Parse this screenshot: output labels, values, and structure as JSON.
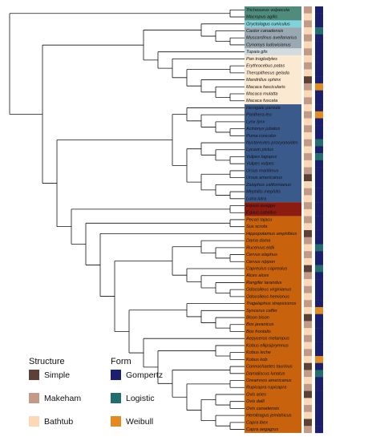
{
  "legend": {
    "structure": {
      "title": "Structure",
      "items": [
        {
          "label": "Simple",
          "color": "#5c4236"
        },
        {
          "label": "Makeham",
          "color": "#c29a86"
        },
        {
          "label": "Bathtub",
          "color": "#fcd9b6"
        }
      ]
    },
    "form": {
      "title": "Form",
      "items": [
        {
          "label": "Gompertz",
          "color": "#1b1f70"
        },
        {
          "label": "Logistic",
          "color": "#226d6e"
        },
        {
          "label": "Weibull",
          "color": "#e28b20"
        }
      ]
    }
  },
  "groups": [
    {
      "color": "#4f8c7c",
      "species": [
        {
          "name": "Trichosurus vulpecula",
          "structure": "Makeham",
          "form": "Gompertz"
        },
        {
          "name": "Macropus agilis",
          "structure": "Bathtub",
          "form": "Gompertz"
        }
      ]
    },
    {
      "color": "#7fd3da",
      "species": [
        {
          "name": "Oryctolagus cuniculus",
          "structure": "Makeham",
          "form": "Gompertz"
        }
      ]
    },
    {
      "color": "#9aa8b2",
      "species": [
        {
          "name": "Castor canadensis",
          "structure": "Bathtub",
          "form": "Logistic"
        },
        {
          "name": "Muscardinus avellanarius",
          "structure": "Makeham",
          "form": "Gompertz"
        },
        {
          "name": "Cynomys ludovicianus",
          "structure": "Bathtub",
          "form": "Gompertz"
        }
      ]
    },
    {
      "color": "#d3dbdf",
      "species": [
        {
          "name": "Tupaia glis",
          "structure": "Makeham",
          "form": "Gompertz"
        }
      ]
    },
    {
      "color": "#fbe9d1",
      "species": [
        {
          "name": "Pan troglodytes",
          "structure": "Bathtub",
          "form": "Gompertz"
        },
        {
          "name": "Erythrocebus patas",
          "structure": "Makeham",
          "form": "Gompertz"
        },
        {
          "name": "Theropithecus gelada",
          "structure": "Bathtub",
          "form": "Gompertz"
        },
        {
          "name": "Mandrillus sphinx",
          "structure": "Simple",
          "form": "Gompertz"
        },
        {
          "name": "Macaca fascicularis",
          "structure": "Makeham",
          "form": "Weibull"
        },
        {
          "name": "Macaca mulatta",
          "structure": "Bathtub",
          "form": "Gompertz"
        },
        {
          "name": "Macaca fuscata",
          "structure": "Makeham",
          "form": "Gompertz"
        }
      ]
    },
    {
      "color": "#3b5a8c",
      "species": [
        {
          "name": "Herogale parvula",
          "structure": "Bathtub",
          "form": "Gompertz"
        },
        {
          "name": "Panthera leo",
          "structure": "Makeham",
          "form": "Weibull"
        },
        {
          "name": "Lynx lynx",
          "structure": "Bathtub",
          "form": "Gompertz"
        },
        {
          "name": "Acinonyx jubatus",
          "structure": "Makeham",
          "form": "Gompertz"
        },
        {
          "name": "Puma concolor",
          "structure": "Bathtub",
          "form": "Gompertz"
        },
        {
          "name": "Nyctereutes procyonoides",
          "structure": "Makeham",
          "form": "Logistic"
        },
        {
          "name": "Lycaon pictus",
          "structure": "Bathtub",
          "form": "Gompertz"
        },
        {
          "name": "Vulpes lagopus",
          "structure": "Makeham",
          "form": "Logistic"
        },
        {
          "name": "Vulpes vulpes",
          "structure": "Bathtub",
          "form": "Gompertz"
        },
        {
          "name": "Ursus maritimus",
          "structure": "Makeham",
          "form": "Gompertz"
        },
        {
          "name": "Ursus americanus",
          "structure": "Simple",
          "form": "Gompertz"
        },
        {
          "name": "Zalophus californianus",
          "structure": "Bathtub",
          "form": "Gompertz"
        },
        {
          "name": "Mephitis mephitis",
          "structure": "Makeham",
          "form": "Gompertz"
        },
        {
          "name": "Lutra lutra",
          "structure": "Bathtub",
          "form": "Gompertz"
        }
      ]
    },
    {
      "color": "#8c1c12",
      "species": [
        {
          "name": "Equus quagga",
          "structure": "Makeham",
          "form": "Gompertz"
        },
        {
          "name": "Equus caballus",
          "structure": "Bathtub",
          "form": "Gompertz"
        }
      ]
    },
    {
      "color": "#c8620c",
      "species": [
        {
          "name": "Pecari tajacu",
          "structure": "Makeham",
          "form": "Gompertz"
        },
        {
          "name": "Sus scrofa",
          "structure": "Bathtub",
          "form": "Gompertz"
        },
        {
          "name": "Hippopotamus amphibius",
          "structure": "Simple",
          "form": "Gompertz"
        },
        {
          "name": "Dama dama",
          "structure": "Makeham",
          "form": "Gompertz"
        },
        {
          "name": "Rucervus eldii",
          "structure": "Bathtub",
          "form": "Logistic"
        },
        {
          "name": "Cervus elaphus",
          "structure": "Makeham",
          "form": "Gompertz"
        },
        {
          "name": "Cervus nippon",
          "structure": "Bathtub",
          "form": "Gompertz"
        },
        {
          "name": "Capreolus capreolus",
          "structure": "Simple",
          "form": "Logistic"
        },
        {
          "name": "Alces alces",
          "structure": "Makeham",
          "form": "Gompertz"
        },
        {
          "name": "Rangifer tarandus",
          "structure": "Bathtub",
          "form": "Gompertz"
        },
        {
          "name": "Odocoileus virginianus",
          "structure": "Makeham",
          "form": "Gompertz"
        },
        {
          "name": "Odocoileus hemionus",
          "structure": "Bathtub",
          "form": "Gompertz"
        },
        {
          "name": "Tragelaphus strepsiceros",
          "structure": "Makeham",
          "form": "Gompertz"
        },
        {
          "name": "Syncerus caffer",
          "structure": "Bathtub",
          "form": "Weibull"
        },
        {
          "name": "Bison bison",
          "structure": "Simple",
          "form": "Gompertz"
        },
        {
          "name": "Bos javanicus",
          "structure": "Makeham",
          "form": "Gompertz"
        },
        {
          "name": "Bos frontalis",
          "structure": "Bathtub",
          "form": "Gompertz"
        },
        {
          "name": "Aepyceros melampus",
          "structure": "Makeham",
          "form": "Gompertz"
        },
        {
          "name": "Kobus ellipsiprymnus",
          "structure": "Bathtub",
          "form": "Gompertz"
        },
        {
          "name": "Kobus leche",
          "structure": "Makeham",
          "form": "Gompertz"
        },
        {
          "name": "Kobus kob",
          "structure": "Bathtub",
          "form": "Weibull"
        },
        {
          "name": "Connochaetes taurinus",
          "structure": "Simple",
          "form": "Gompertz"
        },
        {
          "name": "Damaliscus lunatus",
          "structure": "Makeham",
          "form": "Logistic"
        },
        {
          "name": "Oreamnos americanus",
          "structure": "Bathtub",
          "form": "Gompertz"
        },
        {
          "name": "Rupicapra rupicapra",
          "structure": "Makeham",
          "form": "Gompertz"
        },
        {
          "name": "Ovis aries",
          "structure": "Simple",
          "form": "Gompertz"
        },
        {
          "name": "Ovis dalli",
          "structure": "Bathtub",
          "form": "Gompertz"
        },
        {
          "name": "Ovis canadensis",
          "structure": "Makeham",
          "form": "Gompertz"
        },
        {
          "name": "Hemitragus jemlahicus",
          "structure": "Bathtub",
          "form": "Gompertz"
        },
        {
          "name": "Capra ibex",
          "structure": "Simple",
          "form": "Gompertz"
        },
        {
          "name": "Capra aegagrus",
          "structure": "Makeham",
          "form": "Gompertz"
        }
      ]
    }
  ]
}
